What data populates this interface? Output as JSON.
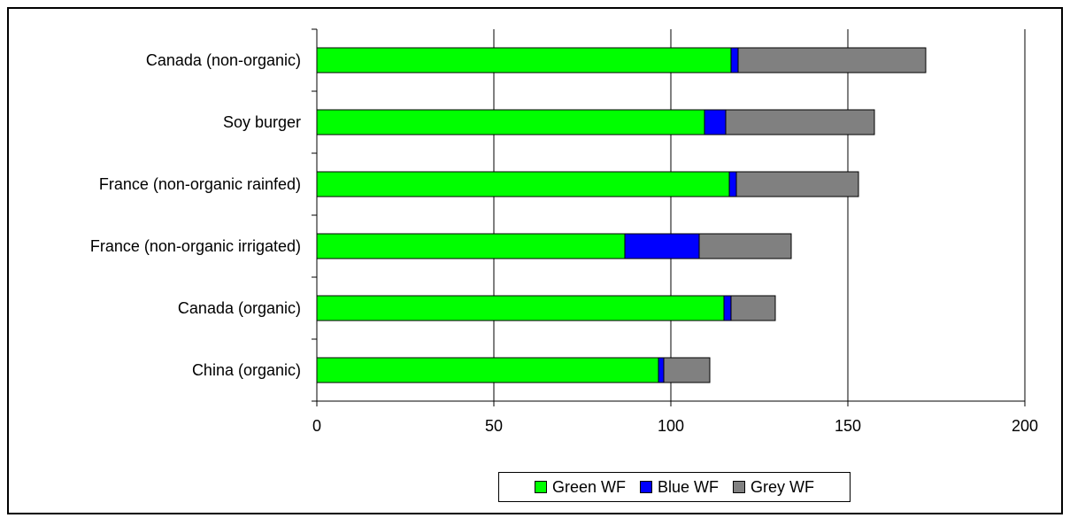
{
  "chart_data": {
    "type": "bar",
    "orientation": "horizontal",
    "stacked": true,
    "categories": [
      "Canada  (non-organic)",
      "Soy burger",
      "France (non-organic rainfed)",
      "France (non-organic irrigated)",
      "Canada (organic)",
      "China (organic)"
    ],
    "series": [
      {
        "name": "Green WF",
        "color": "#00ff00",
        "values": [
          117,
          109.5,
          116.5,
          87,
          115,
          96.5
        ]
      },
      {
        "name": "Blue WF",
        "color": "#0000ff",
        "values": [
          2,
          6,
          2,
          21,
          2,
          1.5
        ]
      },
      {
        "name": "Grey WF",
        "color": "#808080",
        "values": [
          53,
          42,
          34.5,
          26,
          12.5,
          13
        ]
      }
    ],
    "x_ticks": [
      "0",
      "50",
      "100",
      "150",
      "200"
    ],
    "xlim": [
      0,
      200
    ],
    "grid": "vertical",
    "legend_position": "bottom"
  }
}
